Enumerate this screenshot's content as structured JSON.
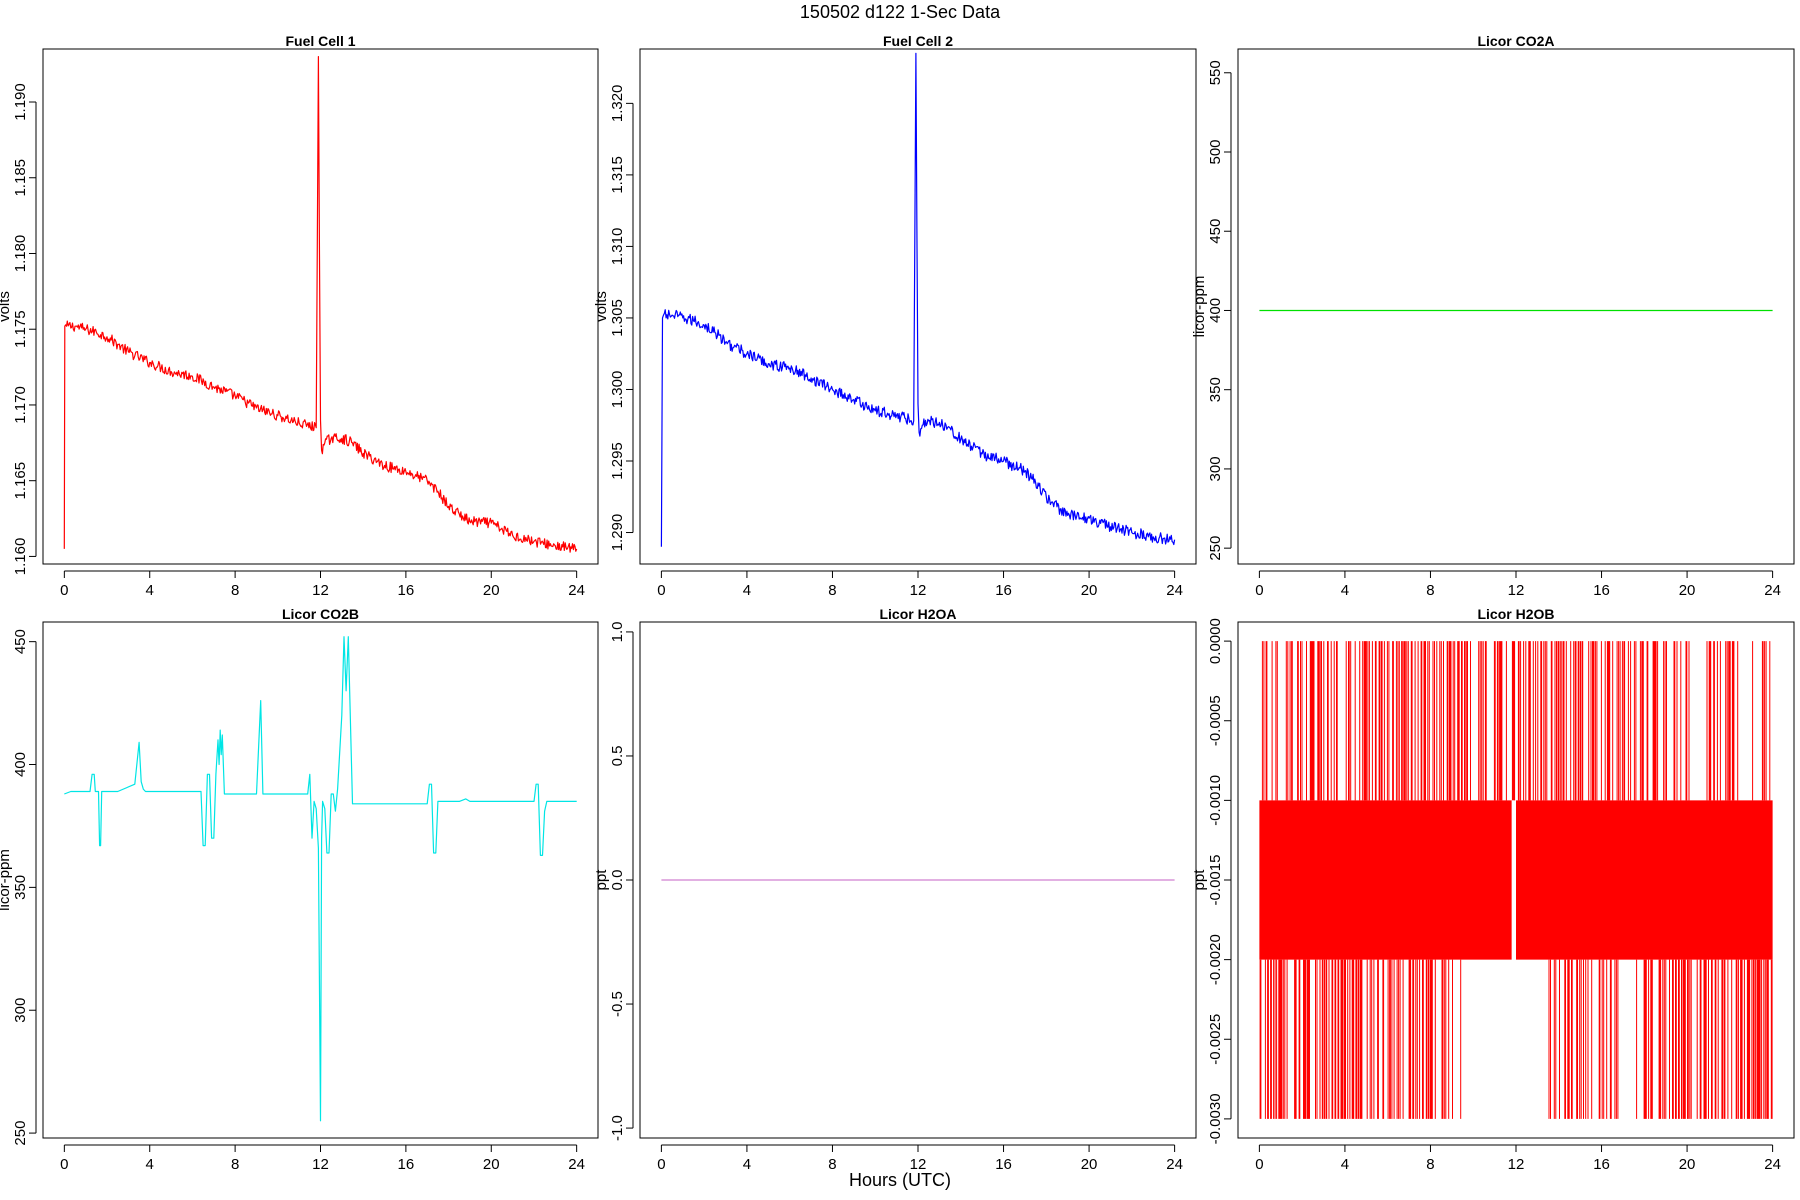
{
  "figure": {
    "title": "150502   d122   1-Sec Data",
    "xlabel": "Hours (UTC)"
  },
  "chart_data": [
    {
      "type": "line",
      "title": "Fuel Cell 1",
      "ylabel": "volts",
      "color": "#ff0000",
      "xlim": [
        -1,
        25
      ],
      "ylim": [
        1.1595,
        1.1935
      ],
      "xticks": [
        0,
        4,
        8,
        12,
        16,
        20,
        24
      ],
      "yticks": [
        1.16,
        1.165,
        1.17,
        1.175,
        1.18,
        1.185,
        1.19
      ],
      "ytick_labels": [
        "1.160",
        "1.165",
        "1.170",
        "1.175",
        "1.180",
        "1.185",
        "1.190"
      ],
      "x": [
        0,
        0.02,
        0.1,
        0.5,
        1,
        1.5,
        2,
        2.5,
        3,
        4,
        5,
        6,
        7,
        8,
        9,
        10,
        11,
        11.8,
        11.9,
        12.0,
        12.05,
        12.2,
        12.5,
        13,
        13.5,
        14,
        15,
        16,
        17,
        17.5,
        18,
        18.5,
        19,
        20,
        21,
        22,
        23,
        24
      ],
      "y": [
        1.1605,
        1.1752,
        1.1752,
        1.1752,
        1.175,
        1.1748,
        1.1745,
        1.174,
        1.1735,
        1.1728,
        1.1722,
        1.1719,
        1.1712,
        1.1706,
        1.1698,
        1.1693,
        1.1688,
        1.1685,
        1.193,
        1.169,
        1.167,
        1.1675,
        1.1678,
        1.1678,
        1.1675,
        1.1668,
        1.166,
        1.1656,
        1.165,
        1.1643,
        1.1633,
        1.1628,
        1.1623,
        1.1622,
        1.1614,
        1.161,
        1.1607,
        1.1605
      ],
      "noise": 0.00035
    },
    {
      "type": "line",
      "title": "Fuel Cell 2",
      "ylabel": "volts",
      "color": "#0000ff",
      "xlim": [
        -1,
        25
      ],
      "ylim": [
        1.2878,
        1.3238
      ],
      "xticks": [
        0,
        4,
        8,
        12,
        16,
        20,
        24
      ],
      "yticks": [
        1.29,
        1.295,
        1.3,
        1.305,
        1.31,
        1.315,
        1.32
      ],
      "ytick_labels": [
        "1.290",
        "1.295",
        "1.300",
        "1.305",
        "1.310",
        "1.315",
        "1.320"
      ],
      "x": [
        0,
        0.05,
        0.1,
        0.5,
        1,
        1.5,
        2,
        2.5,
        3,
        4,
        5,
        6,
        7,
        8,
        9,
        10,
        11,
        11.8,
        11.9,
        12.0,
        12.05,
        12.2,
        12.5,
        13,
        13.5,
        14,
        15,
        16,
        17,
        17.5,
        18,
        18.5,
        19,
        20,
        21,
        22,
        23,
        24
      ],
      "y": [
        1.289,
        1.305,
        1.3052,
        1.3052,
        1.305,
        1.3048,
        1.3045,
        1.304,
        1.3033,
        1.3025,
        1.3018,
        1.3015,
        1.3008,
        1.3,
        1.2993,
        1.2985,
        1.2982,
        1.2978,
        1.3235,
        1.299,
        1.297,
        1.2975,
        1.2978,
        1.2977,
        1.2973,
        1.2965,
        1.2955,
        1.295,
        1.2943,
        1.2935,
        1.2925,
        1.2918,
        1.2912,
        1.291,
        1.2904,
        1.29,
        1.2897,
        1.2895
      ],
      "noise": 0.0004
    },
    {
      "type": "line",
      "title": "Licor CO2A",
      "ylabel": "licor-ppm",
      "color": "#00e000",
      "xlim": [
        -1,
        25
      ],
      "ylim": [
        240,
        565
      ],
      "xticks": [
        0,
        4,
        8,
        12,
        16,
        20,
        24
      ],
      "yticks": [
        250,
        300,
        350,
        400,
        450,
        500,
        550
      ],
      "ytick_labels": [
        "250",
        "300",
        "350",
        "400",
        "450",
        "500",
        "550"
      ],
      "x": [
        0,
        24
      ],
      "y": [
        400,
        400
      ],
      "noise": 0
    },
    {
      "type": "line",
      "title": "Licor CO2B",
      "ylabel": "licor-ppm",
      "color": "#00e5e5",
      "xlim": [
        -1,
        25
      ],
      "ylim": [
        248,
        458
      ],
      "xticks": [
        0,
        4,
        8,
        12,
        16,
        20,
        24
      ],
      "yticks": [
        250,
        300,
        350,
        400,
        450
      ],
      "ytick_labels": [
        "250",
        "300",
        "350",
        "400",
        "450"
      ],
      "x": [
        0,
        0.3,
        0.5,
        1.2,
        1.3,
        1.4,
        1.45,
        1.6,
        1.65,
        1.7,
        1.75,
        2.5,
        3.3,
        3.5,
        3.6,
        3.7,
        3.8,
        3.9,
        4.0,
        6.4,
        6.5,
        6.6,
        6.7,
        6.8,
        6.9,
        7.0,
        7.1,
        7.2,
        7.25,
        7.3,
        7.35,
        7.4,
        7.5,
        7.6,
        7.7,
        9.0,
        9.2,
        9.3,
        9.4,
        11.4,
        11.5,
        11.6,
        11.7,
        11.8,
        11.9,
        12.0,
        12.05,
        12.1,
        12.2,
        12.3,
        12.4,
        12.5,
        12.6,
        12.7,
        12.8,
        13.0,
        13.1,
        13.2,
        13.3,
        13.5,
        13.6,
        17.0,
        17.1,
        17.2,
        17.3,
        17.4,
        17.5,
        18.5,
        18.8,
        19.0,
        22.0,
        22.1,
        22.2,
        22.3,
        22.4,
        22.5,
        22.6,
        24
      ],
      "y": [
        388,
        389,
        389,
        389,
        396,
        396,
        389,
        389,
        367,
        367,
        389,
        389,
        392,
        409,
        393,
        390,
        389,
        389,
        389,
        389,
        367,
        367,
        396,
        396,
        370,
        370,
        396,
        410,
        400,
        414,
        404,
        412,
        388,
        388,
        388,
        388,
        426,
        388,
        388,
        388,
        396,
        370,
        385,
        382,
        366,
        255,
        370,
        385,
        382,
        364,
        364,
        388,
        388,
        381,
        390,
        420,
        452,
        430,
        452,
        384,
        384,
        384,
        392,
        392,
        364,
        364,
        385,
        385,
        386,
        385,
        385,
        392,
        392,
        363,
        363,
        381,
        385,
        385
      ],
      "noise": 0
    },
    {
      "type": "line",
      "title": "Licor H2OA",
      "ylabel": "ppt",
      "color": "#d080d0",
      "xlim": [
        -1,
        25
      ],
      "ylim": [
        -1.04,
        1.04
      ],
      "xticks": [
        0,
        4,
        8,
        12,
        16,
        20,
        24
      ],
      "yticks": [
        -1.0,
        -0.5,
        0.0,
        0.5,
        1.0
      ],
      "ytick_labels": [
        "-1.0",
        "-0.5",
        "0.0",
        "0.5",
        "1.0"
      ],
      "x": [
        0,
        24
      ],
      "y": [
        0,
        0
      ],
      "noise": 0
    },
    {
      "type": "line",
      "title": "Licor H2OB",
      "ylabel": "ppt",
      "color": "#ff0000",
      "xlim": [
        -1,
        25
      ],
      "ylim": [
        -0.00312,
        0.00012
      ],
      "xticks": [
        0,
        4,
        8,
        12,
        16,
        20,
        24
      ],
      "yticks": [
        -0.003,
        -0.0025,
        -0.002,
        -0.0015,
        -0.001,
        -0.0005,
        0.0
      ],
      "ytick_labels": [
        "-0.0030",
        "-0.0025",
        "-0.0020",
        "-0.0015",
        "-0.0010",
        "-0.0005",
        "0.0000"
      ],
      "levels": [
        -0.003,
        -0.002,
        -0.001,
        0.0
      ],
      "band": [
        -0.002,
        -0.001
      ],
      "band_segments": [
        [
          0,
          11.8
        ],
        [
          12.0,
          24
        ]
      ],
      "x": [],
      "y": [],
      "noise": 0
    }
  ]
}
